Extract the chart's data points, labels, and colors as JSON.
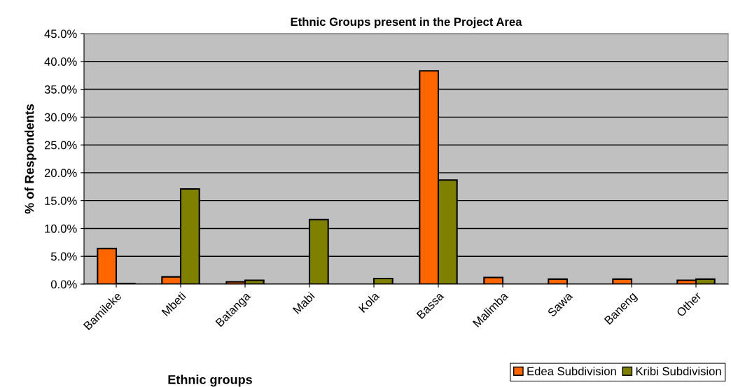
{
  "chart_data": {
    "type": "bar",
    "title": "Ethnic Groups present in the Project Area",
    "xlabel": "Ethnic groups",
    "ylabel": "% of Respondents",
    "categories": [
      "Bamileke",
      "Mbeti",
      "Batanga",
      "Mabi",
      "Kola",
      "Bassa",
      "Malimba",
      "Sawa",
      "Baneng",
      "Other"
    ],
    "series": [
      {
        "name": "Edea Subdivision",
        "color": "#ff6600",
        "values": [
          6.4,
          1.3,
          0.4,
          null,
          null,
          38.3,
          1.2,
          0.9,
          0.9,
          0.7
        ]
      },
      {
        "name": "Kribi Subdivision",
        "color": "#808000",
        "values": [
          0.1,
          17.1,
          0.7,
          11.6,
          1.0,
          18.7,
          null,
          null,
          null,
          0.9
        ]
      }
    ],
    "ylim": [
      0,
      45
    ],
    "yticks": [
      {
        "value": 0,
        "label": "0.0%"
      },
      {
        "value": 5,
        "label": "5.0%"
      },
      {
        "value": 10,
        "label": "10.0%"
      },
      {
        "value": 15,
        "label": "15.0%"
      },
      {
        "value": 20,
        "label": "20.0%"
      },
      {
        "value": 25,
        "label": "25.0%"
      },
      {
        "value": 30,
        "label": "30.0%"
      },
      {
        "value": 35,
        "label": "35.0%"
      },
      {
        "value": 40,
        "label": "40.0%"
      },
      {
        "value": 45,
        "label": "45.0%"
      }
    ],
    "grid": "y",
    "legend": "bottom right"
  }
}
